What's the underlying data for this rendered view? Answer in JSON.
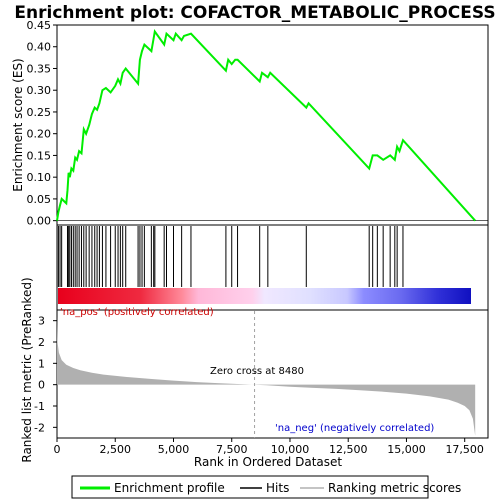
{
  "chart_data": [
    {
      "type": "line",
      "panel": "enrichment",
      "title": "Enrichment plot: COFACTOR_METABOLIC_PROCESS",
      "ylabel": "Enrichment score (ES)",
      "ylim": [
        -0.01,
        0.45
      ],
      "yticks": [
        "0.00",
        "0.05",
        "0.10",
        "0.15",
        "0.20",
        "0.25",
        "0.30",
        "0.35",
        "0.40",
        "0.45"
      ],
      "line_color": "#00ee00",
      "series": [
        {
          "name": "Enrichment profile",
          "x": [
            0,
            60,
            130,
            200,
            300,
            400,
            450,
            500,
            550,
            620,
            700,
            780,
            860,
            950,
            1050,
            1150,
            1250,
            1380,
            1500,
            1620,
            1720,
            1820,
            1950,
            2100,
            2300,
            2500,
            2620,
            2720,
            2820,
            2950,
            3480,
            3560,
            3650,
            3750,
            4050,
            4150,
            4200,
            4600,
            4700,
            5000,
            5100,
            5350,
            5450,
            5750,
            7250,
            7350,
            7500,
            7650,
            7750,
            8700,
            8800,
            9050,
            9150,
            10700,
            10800,
            13400,
            13550,
            13750,
            14000,
            14300,
            14500,
            14600,
            14700,
            14850,
            17950
          ],
          "y": [
            0.0,
            0.02,
            0.035,
            0.05,
            0.045,
            0.04,
            0.07,
            0.11,
            0.1,
            0.12,
            0.115,
            0.145,
            0.14,
            0.16,
            0.155,
            0.21,
            0.2,
            0.22,
            0.245,
            0.26,
            0.255,
            0.27,
            0.3,
            0.305,
            0.295,
            0.31,
            0.325,
            0.315,
            0.34,
            0.35,
            0.315,
            0.37,
            0.39,
            0.405,
            0.39,
            0.42,
            0.435,
            0.405,
            0.43,
            0.415,
            0.43,
            0.415,
            0.425,
            0.43,
            0.345,
            0.37,
            0.36,
            0.37,
            0.37,
            0.32,
            0.34,
            0.33,
            0.34,
            0.26,
            0.27,
            0.12,
            0.15,
            0.15,
            0.14,
            0.15,
            0.14,
            0.17,
            0.16,
            0.185,
            0.0
          ]
        }
      ]
    },
    {
      "type": "scatter",
      "panel": "hits",
      "series": [
        {
          "name": "Hits",
          "x": [
            60,
            130,
            200,
            450,
            500,
            550,
            620,
            700,
            780,
            860,
            950,
            1050,
            1150,
            1250,
            1380,
            1500,
            1620,
            1720,
            1820,
            1950,
            2100,
            2300,
            2500,
            2620,
            2720,
            2820,
            2950,
            3480,
            3560,
            3650,
            3750,
            4050,
            4150,
            4200,
            4600,
            4700,
            5000,
            5350,
            5750,
            7250,
            7500,
            7750,
            8700,
            9050,
            10700,
            13400,
            13550,
            13750,
            14000,
            14300,
            14500,
            14600,
            14850
          ]
        }
      ]
    },
    {
      "type": "area",
      "panel": "ranked_metric",
      "xlabel": "Rank in Ordered Dataset",
      "ylabel": "Ranked list metric (PreRanked)",
      "xlim": [
        0,
        18500
      ],
      "ylim": [
        -2.5,
        3.5
      ],
      "xticks": [
        "0",
        "2,500",
        "5,000",
        "7,500",
        "10,000",
        "12,500",
        "15,000",
        "17,500"
      ],
      "yticks": [
        "-2",
        "-1",
        "0",
        "1",
        "2",
        "3"
      ],
      "fill_color": "#b0b0b0",
      "series": [
        {
          "name": "Ranking metric scores",
          "x": [
            0,
            20,
            80,
            200,
            400,
            700,
            1000,
            1500,
            2000,
            3000,
            4000,
            5000,
            6000,
            7000,
            8000,
            8480,
            9000,
            10000,
            11000,
            12000,
            13000,
            14000,
            15000,
            16000,
            16800,
            17200,
            17500,
            17700,
            17850,
            17950
          ],
          "y": [
            3.2,
            2.0,
            1.5,
            1.15,
            0.93,
            0.78,
            0.68,
            0.56,
            0.47,
            0.36,
            0.27,
            0.19,
            0.12,
            0.07,
            0.02,
            0.0,
            -0.03,
            -0.1,
            -0.15,
            -0.2,
            -0.26,
            -0.33,
            -0.42,
            -0.55,
            -0.7,
            -0.85,
            -1.0,
            -1.2,
            -1.6,
            -2.4
          ]
        }
      ],
      "annotations": {
        "pos": "'na_pos' (positively correlated)",
        "neg": "'na_neg' (negatively correlated)",
        "zero": "Zero cross at 8480"
      },
      "zero_cross": 8480
    }
  ],
  "legend": {
    "items": [
      {
        "label": "Enrichment profile",
        "color": "#00ee00",
        "icon": "green-line-icon"
      },
      {
        "label": "Hits",
        "color": "#000000",
        "icon": "black-line-icon"
      },
      {
        "label": "Ranking metric scores",
        "color": "#b0b0b0",
        "icon": "gray-line-icon"
      }
    ]
  },
  "colorbar": {
    "stops": [
      "#e8001c",
      "#ff7a7a",
      "#ffc0e0",
      "#e8e8ff",
      "#8080ff",
      "#2020d0",
      "#1010c0"
    ]
  }
}
